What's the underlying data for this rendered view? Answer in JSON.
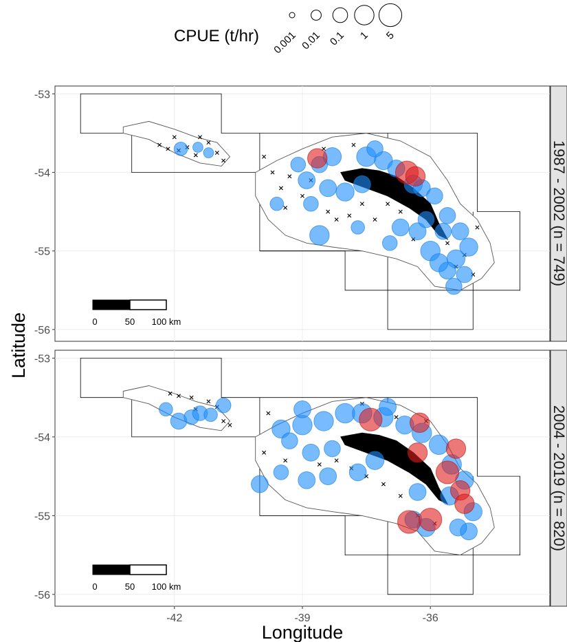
{
  "chart_data": {
    "type": "scatter",
    "xlabel": "Longitude",
    "ylabel": "Latitude",
    "xlim": [
      -44.8,
      -33.2
    ],
    "ylim": [
      -56.15,
      -52.9
    ],
    "x_ticks": [
      "-42",
      "-39",
      "-36"
    ],
    "x_tick_values": [
      -42,
      -39,
      -36
    ],
    "y_ticks": [
      "-53",
      "-54",
      "-55",
      "-56"
    ],
    "y_tick_values": [
      -53,
      -54,
      -55,
      -56
    ],
    "grid": true,
    "legend": {
      "title": "CPUE (t/hr)",
      "position": "top",
      "labels": [
        "0.001",
        "0.01",
        "0.1",
        "1",
        "5"
      ],
      "values": [
        0.001,
        0.01,
        0.1,
        1,
        5
      ]
    },
    "scale_bar": {
      "labels": [
        "0",
        "50",
        "100 km"
      ]
    },
    "colors": {
      "low_cpue": "#1e90ff",
      "high_cpue": "#e01e1e",
      "absent_marker": "#000000",
      "strip": "#e3e3e3"
    },
    "panels": [
      {
        "strip_label": "1987 - 2002 (n = 749)",
        "series": [
          {
            "marker": "x",
            "points": [
              [
                -42.35,
                -53.65
              ],
              [
                -42.15,
                -53.7
              ],
              [
                -41.9,
                -53.72
              ],
              [
                -41.7,
                -53.68
              ],
              [
                -41.5,
                -53.78
              ],
              [
                -41.2,
                -53.62
              ],
              [
                -41.0,
                -53.75
              ],
              [
                -40.85,
                -53.85
              ],
              [
                -42.0,
                -53.55
              ],
              [
                -41.4,
                -53.55
              ],
              [
                -39.9,
                -53.8
              ],
              [
                -39.7,
                -54.0
              ],
              [
                -39.5,
                -54.2
              ],
              [
                -39.3,
                -54.05
              ],
              [
                -39.0,
                -54.3
              ],
              [
                -38.8,
                -54.1
              ],
              [
                -39.4,
                -54.45
              ],
              [
                -38.4,
                -54.5
              ],
              [
                -38.2,
                -54.6
              ],
              [
                -37.9,
                -54.55
              ],
              [
                -37.6,
                -54.4
              ],
              [
                -37.3,
                -54.6
              ],
              [
                -37.0,
                -54.4
              ],
              [
                -36.7,
                -54.5
              ],
              [
                -36.4,
                -54.85
              ],
              [
                -35.6,
                -54.9
              ],
              [
                -35.2,
                -55.05
              ],
              [
                -35.0,
                -55.3
              ],
              [
                -35.4,
                -55.2
              ],
              [
                -34.9,
                -54.7
              ],
              [
                -37.8,
                -53.65
              ],
              [
                -38.5,
                -53.7
              ]
            ]
          },
          {
            "marker": "circle",
            "color": "blue",
            "points": [
              [
                -41.85,
                -53.7,
                0.05
              ],
              [
                -41.45,
                -53.68,
                0.01
              ],
              [
                -41.2,
                -53.75,
                0.01
              ],
              [
                -38.3,
                -53.8,
                0.5
              ],
              [
                -37.5,
                -53.8,
                1
              ],
              [
                -37.1,
                -53.85,
                0.5
              ],
              [
                -36.8,
                -53.95,
                0.3
              ],
              [
                -36.4,
                -54.15,
                0.5
              ],
              [
                -36.2,
                -54.2,
                0.3
              ],
              [
                -35.9,
                -54.3,
                0.2
              ],
              [
                -35.6,
                -54.55,
                0.2
              ],
              [
                -35.3,
                -54.75,
                0.3
              ],
              [
                -35.1,
                -54.95,
                0.5
              ],
              [
                -35.4,
                -55.1,
                0.5
              ],
              [
                -35.6,
                -55.25,
                0.3
              ],
              [
                -35.2,
                -55.3,
                0.2
              ],
              [
                -36.0,
                -55.0,
                1
              ],
              [
                -36.3,
                -54.75,
                0.3
              ],
              [
                -38.4,
                -54.2,
                0.3
              ],
              [
                -38.0,
                -54.25,
                0.5
              ],
              [
                -37.6,
                -54.15,
                0.3
              ],
              [
                -38.8,
                -54.4,
                0.1
              ],
              [
                -38.6,
                -54.8,
                1
              ],
              [
                -37.7,
                -54.7,
                0.05
              ],
              [
                -39.6,
                -54.4,
                0.05
              ],
              [
                -38.6,
                -53.9,
                0.2
              ],
              [
                -39.1,
                -53.9,
                0.1
              ],
              [
                -38.9,
                -54.1,
                0.3
              ],
              [
                -35.45,
                -55.45,
                0.2
              ],
              [
                -35.7,
                -54.75,
                0.2
              ],
              [
                -36.7,
                -54.7,
                0.3
              ],
              [
                -35.8,
                -55.15,
                0.5
              ],
              [
                -36.1,
                -54.6,
                0.2
              ],
              [
                -37.3,
                -53.7,
                0.2
              ],
              [
                -36.95,
                -54.9,
                0.1
              ]
            ]
          },
          {
            "marker": "circle",
            "color": "red",
            "points": [
              [
                -38.65,
                -53.82,
                1
              ],
              [
                -36.55,
                -54.0,
                5
              ],
              [
                -36.35,
                -54.05,
                1
              ]
            ]
          }
        ]
      },
      {
        "strip_label": "2004 - 2019 (n = 820)",
        "series": [
          {
            "marker": "x",
            "points": [
              [
                -42.1,
                -53.45
              ],
              [
                -41.9,
                -53.48
              ],
              [
                -41.6,
                -53.5
              ],
              [
                -41.5,
                -53.65
              ],
              [
                -41.2,
                -53.55
              ],
              [
                -41.0,
                -53.62
              ],
              [
                -40.85,
                -53.8
              ],
              [
                -40.7,
                -53.85
              ],
              [
                -39.8,
                -53.7
              ],
              [
                -39.9,
                -54.2
              ],
              [
                -39.4,
                -54.3
              ],
              [
                -38.6,
                -54.35
              ],
              [
                -38.2,
                -54.3
              ],
              [
                -37.85,
                -54.4
              ],
              [
                -37.5,
                -54.5
              ],
              [
                -37.1,
                -54.6
              ],
              [
                -36.7,
                -54.75
              ],
              [
                -36.3,
                -55.0
              ],
              [
                -35.9,
                -55.1
              ],
              [
                -36.8,
                -53.75
              ],
              [
                -37.6,
                -53.58
              ],
              [
                -36.1,
                -53.8
              ]
            ]
          },
          {
            "marker": "circle",
            "color": "blue",
            "points": [
              [
                -42.2,
                -53.65,
                0.05
              ],
              [
                -41.9,
                -53.8,
                0.2
              ],
              [
                -41.6,
                -53.75,
                0.1
              ],
              [
                -41.4,
                -53.7,
                0.1
              ],
              [
                -41.15,
                -53.72,
                0.05
              ],
              [
                -40.85,
                -53.6,
                0.1
              ],
              [
                -39.5,
                -53.9,
                0.5
              ],
              [
                -39.0,
                -53.85,
                1
              ],
              [
                -38.5,
                -53.8,
                1
              ],
              [
                -38.0,
                -53.7,
                1
              ],
              [
                -37.6,
                -53.7,
                1
              ],
              [
                -37.1,
                -53.75,
                1
              ],
              [
                -36.6,
                -53.85,
                0.5
              ],
              [
                -36.2,
                -53.95,
                1
              ],
              [
                -35.8,
                -54.1,
                1
              ],
              [
                -35.5,
                -54.35,
                1
              ],
              [
                -35.2,
                -54.55,
                0.5
              ],
              [
                -35.0,
                -54.95,
                0.5
              ],
              [
                -35.1,
                -55.2,
                0.3
              ],
              [
                -35.35,
                -55.15,
                0.3
              ],
              [
                -38.8,
                -54.2,
                0.3
              ],
              [
                -38.3,
                -54.15,
                0.2
              ],
              [
                -39.3,
                -54.05,
                0.2
              ],
              [
                -39.5,
                -54.45,
                0.1
              ],
              [
                -38.9,
                -54.55,
                0.3
              ],
              [
                -38.4,
                -54.5,
                0.3
              ],
              [
                -37.7,
                -54.45,
                0.3
              ],
              [
                -37.3,
                -54.3,
                0.5
              ],
              [
                -40.0,
                -54.6,
                0.3
              ],
              [
                -36.3,
                -54.7,
                0.3
              ],
              [
                -36.1,
                -55.15,
                0.5
              ],
              [
                -35.55,
                -54.75,
                0.5
              ],
              [
                -39.0,
                -53.65,
                0.3
              ],
              [
                -37.0,
                -53.62,
                0.3
              ],
              [
                -36.4,
                -55.05,
                0.3
              ]
            ]
          },
          {
            "marker": "circle",
            "color": "red",
            "points": [
              [
                -37.4,
                -53.78,
                5
              ],
              [
                -36.25,
                -53.82,
                1
              ],
              [
                -36.3,
                -54.2,
                1
              ],
              [
                -35.4,
                -54.15,
                1
              ],
              [
                -35.6,
                -54.45,
                5
              ],
              [
                -35.3,
                -54.68,
                1
              ],
              [
                -35.2,
                -54.85,
                1
              ],
              [
                -36.5,
                -55.08,
                5
              ],
              [
                -36.0,
                -55.05,
                5
              ]
            ]
          }
        ]
      }
    ]
  }
}
